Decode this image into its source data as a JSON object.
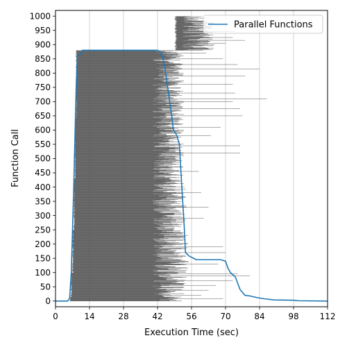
{
  "chart_data": {
    "type": "line",
    "xlabel": "Execution Time (sec)",
    "ylabel": "Function Call",
    "xlim": [
      0,
      112
    ],
    "ylim": [
      -20,
      1020
    ],
    "xticks": [
      0,
      14,
      28,
      42,
      56,
      70,
      84,
      98,
      112
    ],
    "yticks": [
      0,
      50,
      100,
      150,
      200,
      250,
      300,
      350,
      400,
      450,
      500,
      550,
      600,
      650,
      700,
      750,
      800,
      850,
      900,
      950,
      1000
    ],
    "grid": "x",
    "legend_position": "top-right",
    "series": [
      {
        "name": "Parallel Functions",
        "color": "#1f77b4",
        "x": [
          0,
          5,
          5.8,
          6.5,
          7.5,
          8.5,
          9,
          10,
          11,
          20,
          30,
          42,
          43,
          44,
          45,
          46,
          47,
          48,
          48.5,
          49,
          50,
          51,
          52,
          53,
          53.5,
          55,
          58,
          68,
          70,
          71,
          72,
          74,
          76,
          78,
          80,
          83,
          86,
          90,
          98,
          100,
          112
        ],
        "y": [
          0,
          0,
          10,
          100,
          400,
          750,
          860,
          865,
          880,
          880,
          880,
          880,
          875,
          860,
          820,
          760,
          700,
          640,
          600,
          595,
          580,
          550,
          400,
          260,
          170,
          158,
          145,
          145,
          140,
          115,
          100,
          85,
          40,
          20,
          18,
          12,
          8,
          4,
          3,
          1,
          0
        ]
      }
    ],
    "intervals": {
      "color": "#555555",
      "note": "each function call drawn as a thin horizontal bar from its start to end time",
      "groups": [
        {
          "ids": [
            0,
            15
          ],
          "start": [
            5.8,
            6.2
          ],
          "end": [
            40,
            53
          ]
        },
        {
          "ids": [
            15,
            100
          ],
          "start": [
            6.2,
            6.8
          ],
          "end": [
            40,
            54
          ]
        },
        {
          "ids": [
            100,
            250
          ],
          "start": [
            6.8,
            7.4
          ],
          "end": [
            40,
            55
          ]
        },
        {
          "ids": [
            250,
            430
          ],
          "start": [
            7.4,
            7.9
          ],
          "end": [
            40,
            54
          ]
        },
        {
          "ids": [
            430,
            640
          ],
          "start": [
            7.9,
            8.3
          ],
          "end": [
            40,
            53
          ]
        },
        {
          "ids": [
            640,
            880
          ],
          "start": [
            8.3,
            8.8
          ],
          "end": [
            40,
            53
          ]
        },
        {
          "ids": [
            880,
            1000
          ],
          "start": [
            49,
            50
          ],
          "end": [
            52,
            66
          ]
        }
      ],
      "long_tail": [
        {
          "id": 8,
          "start": 6.0,
          "end": 69
        },
        {
          "id": 20,
          "start": 6.2,
          "end": 60
        },
        {
          "id": 38,
          "start": 6.3,
          "end": 63
        },
        {
          "id": 55,
          "start": 6.4,
          "end": 66
        },
        {
          "id": 72,
          "start": 6.5,
          "end": 73
        },
        {
          "id": 88,
          "start": 6.6,
          "end": 80
        },
        {
          "id": 95,
          "start": 6.7,
          "end": 75
        },
        {
          "id": 130,
          "start": 6.9,
          "end": 67
        },
        {
          "id": 170,
          "start": 7.1,
          "end": 70
        },
        {
          "id": 190,
          "start": 7.2,
          "end": 69
        },
        {
          "id": 290,
          "start": 7.5,
          "end": 61
        },
        {
          "id": 330,
          "start": 7.6,
          "end": 63
        },
        {
          "id": 380,
          "start": 7.8,
          "end": 60
        },
        {
          "id": 455,
          "start": 8.0,
          "end": 59
        },
        {
          "id": 520,
          "start": 8.1,
          "end": 76
        },
        {
          "id": 545,
          "start": 8.1,
          "end": 76
        },
        {
          "id": 580,
          "start": 8.2,
          "end": 64
        },
        {
          "id": 610,
          "start": 8.3,
          "end": 68
        },
        {
          "id": 650,
          "start": 8.4,
          "end": 77
        },
        {
          "id": 675,
          "start": 8.5,
          "end": 76
        },
        {
          "id": 700,
          "start": 8.5,
          "end": 73
        },
        {
          "id": 710,
          "start": 8.5,
          "end": 87
        },
        {
          "id": 730,
          "start": 8.6,
          "end": 74
        },
        {
          "id": 760,
          "start": 8.6,
          "end": 73
        },
        {
          "id": 790,
          "start": 8.7,
          "end": 78
        },
        {
          "id": 815,
          "start": 8.7,
          "end": 84
        },
        {
          "id": 830,
          "start": 8.7,
          "end": 75
        },
        {
          "id": 850,
          "start": 8.8,
          "end": 69
        },
        {
          "id": 870,
          "start": 8.8,
          "end": 62
        },
        {
          "id": 905,
          "start": 49.5,
          "end": 70
        },
        {
          "id": 915,
          "start": 49.5,
          "end": 78
        },
        {
          "id": 925,
          "start": 49.5,
          "end": 73
        },
        {
          "id": 945,
          "start": 49.5,
          "end": 74
        }
      ]
    }
  }
}
